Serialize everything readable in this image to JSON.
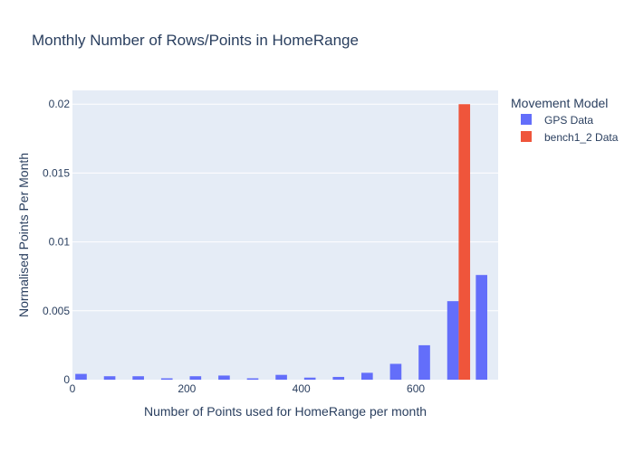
{
  "chart_data": {
    "type": "bar",
    "title": "Monthly Number of Rows/Points in HomeRange",
    "xlabel": "Number of Points used for HomeRange per month",
    "ylabel": "Normalised Points Per Month",
    "xlim": [
      0,
      744
    ],
    "ylim": [
      0,
      0.021
    ],
    "x_ticks": [
      "0",
      "200",
      "400",
      "600"
    ],
    "y_ticks": [
      "0",
      "0.005",
      "0.01",
      "0.015",
      "0.02"
    ],
    "legend": {
      "title": "Movement Model",
      "placement": "top-right"
    },
    "bin_width": 50,
    "series": [
      {
        "name": "GPS Data",
        "color": "#636efa",
        "x": [
          25,
          75,
          125,
          175,
          225,
          275,
          325,
          375,
          425,
          475,
          525,
          575,
          625,
          675,
          725
        ],
        "values": [
          0.00042,
          0.00025,
          0.00025,
          0.0001,
          0.00025,
          0.0003,
          0.0001,
          0.00035,
          0.00015,
          0.0002,
          0.0005,
          0.00115,
          0.0025,
          0.0057,
          0.0076
        ]
      },
      {
        "name": "bench1_2 Data",
        "color": "#ef553b",
        "x": [
          675
        ],
        "values": [
          0.02
        ]
      }
    ]
  }
}
